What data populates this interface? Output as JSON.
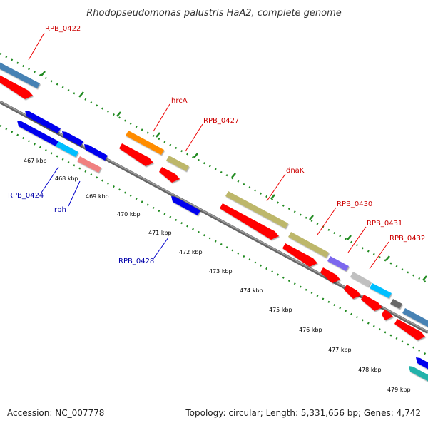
{
  "title": "Rhodopseudomonas palustris HaA2, complete genome",
  "footer": {
    "accession": "Accession: NC_007778",
    "topology": "Topology: circular; Length: 5,331,656 bp; Genes: 4,742"
  },
  "ticks": [
    "467 kbp",
    "468 kbp",
    "469 kbp",
    "470 kbp",
    "471 kbp",
    "472 kbp",
    "473 kbp",
    "474 kbp",
    "475 kbp",
    "476 kbp",
    "477 kbp",
    "478 kbp",
    "479 kbp"
  ],
  "gene_labels": [
    {
      "text": "RPB_0422",
      "color": "#cc0000"
    },
    {
      "text": "hrcA",
      "color": "#cc0000"
    },
    {
      "text": "RPB_0427",
      "color": "#cc0000"
    },
    {
      "text": "dnaK",
      "color": "#cc0000"
    },
    {
      "text": "RPB_0430",
      "color": "#cc0000"
    },
    {
      "text": "RPB_0431",
      "color": "#cc0000"
    },
    {
      "text": "RPB_0432",
      "color": "#cc0000"
    },
    {
      "text": "RPB_0424",
      "color": "#0000aa"
    },
    {
      "text": "rph",
      "color": "#0000aa"
    },
    {
      "text": "RPB_0428",
      "color": "#0000aa"
    }
  ],
  "colors": {
    "backbone": "#808080",
    "tick_dots": "#228b22",
    "forward_cds": "#ff0000",
    "reverse_cds": "#0000ee",
    "olive": "#bdb76b",
    "orange": "#ff8c00",
    "steelblue": "#4682b4",
    "lightblue": "#00bfff",
    "pink": "#f08080",
    "purple": "#7b68ee",
    "silver": "#c0c0c0",
    "darkgray": "#696969",
    "teal": "#20b2aa"
  }
}
